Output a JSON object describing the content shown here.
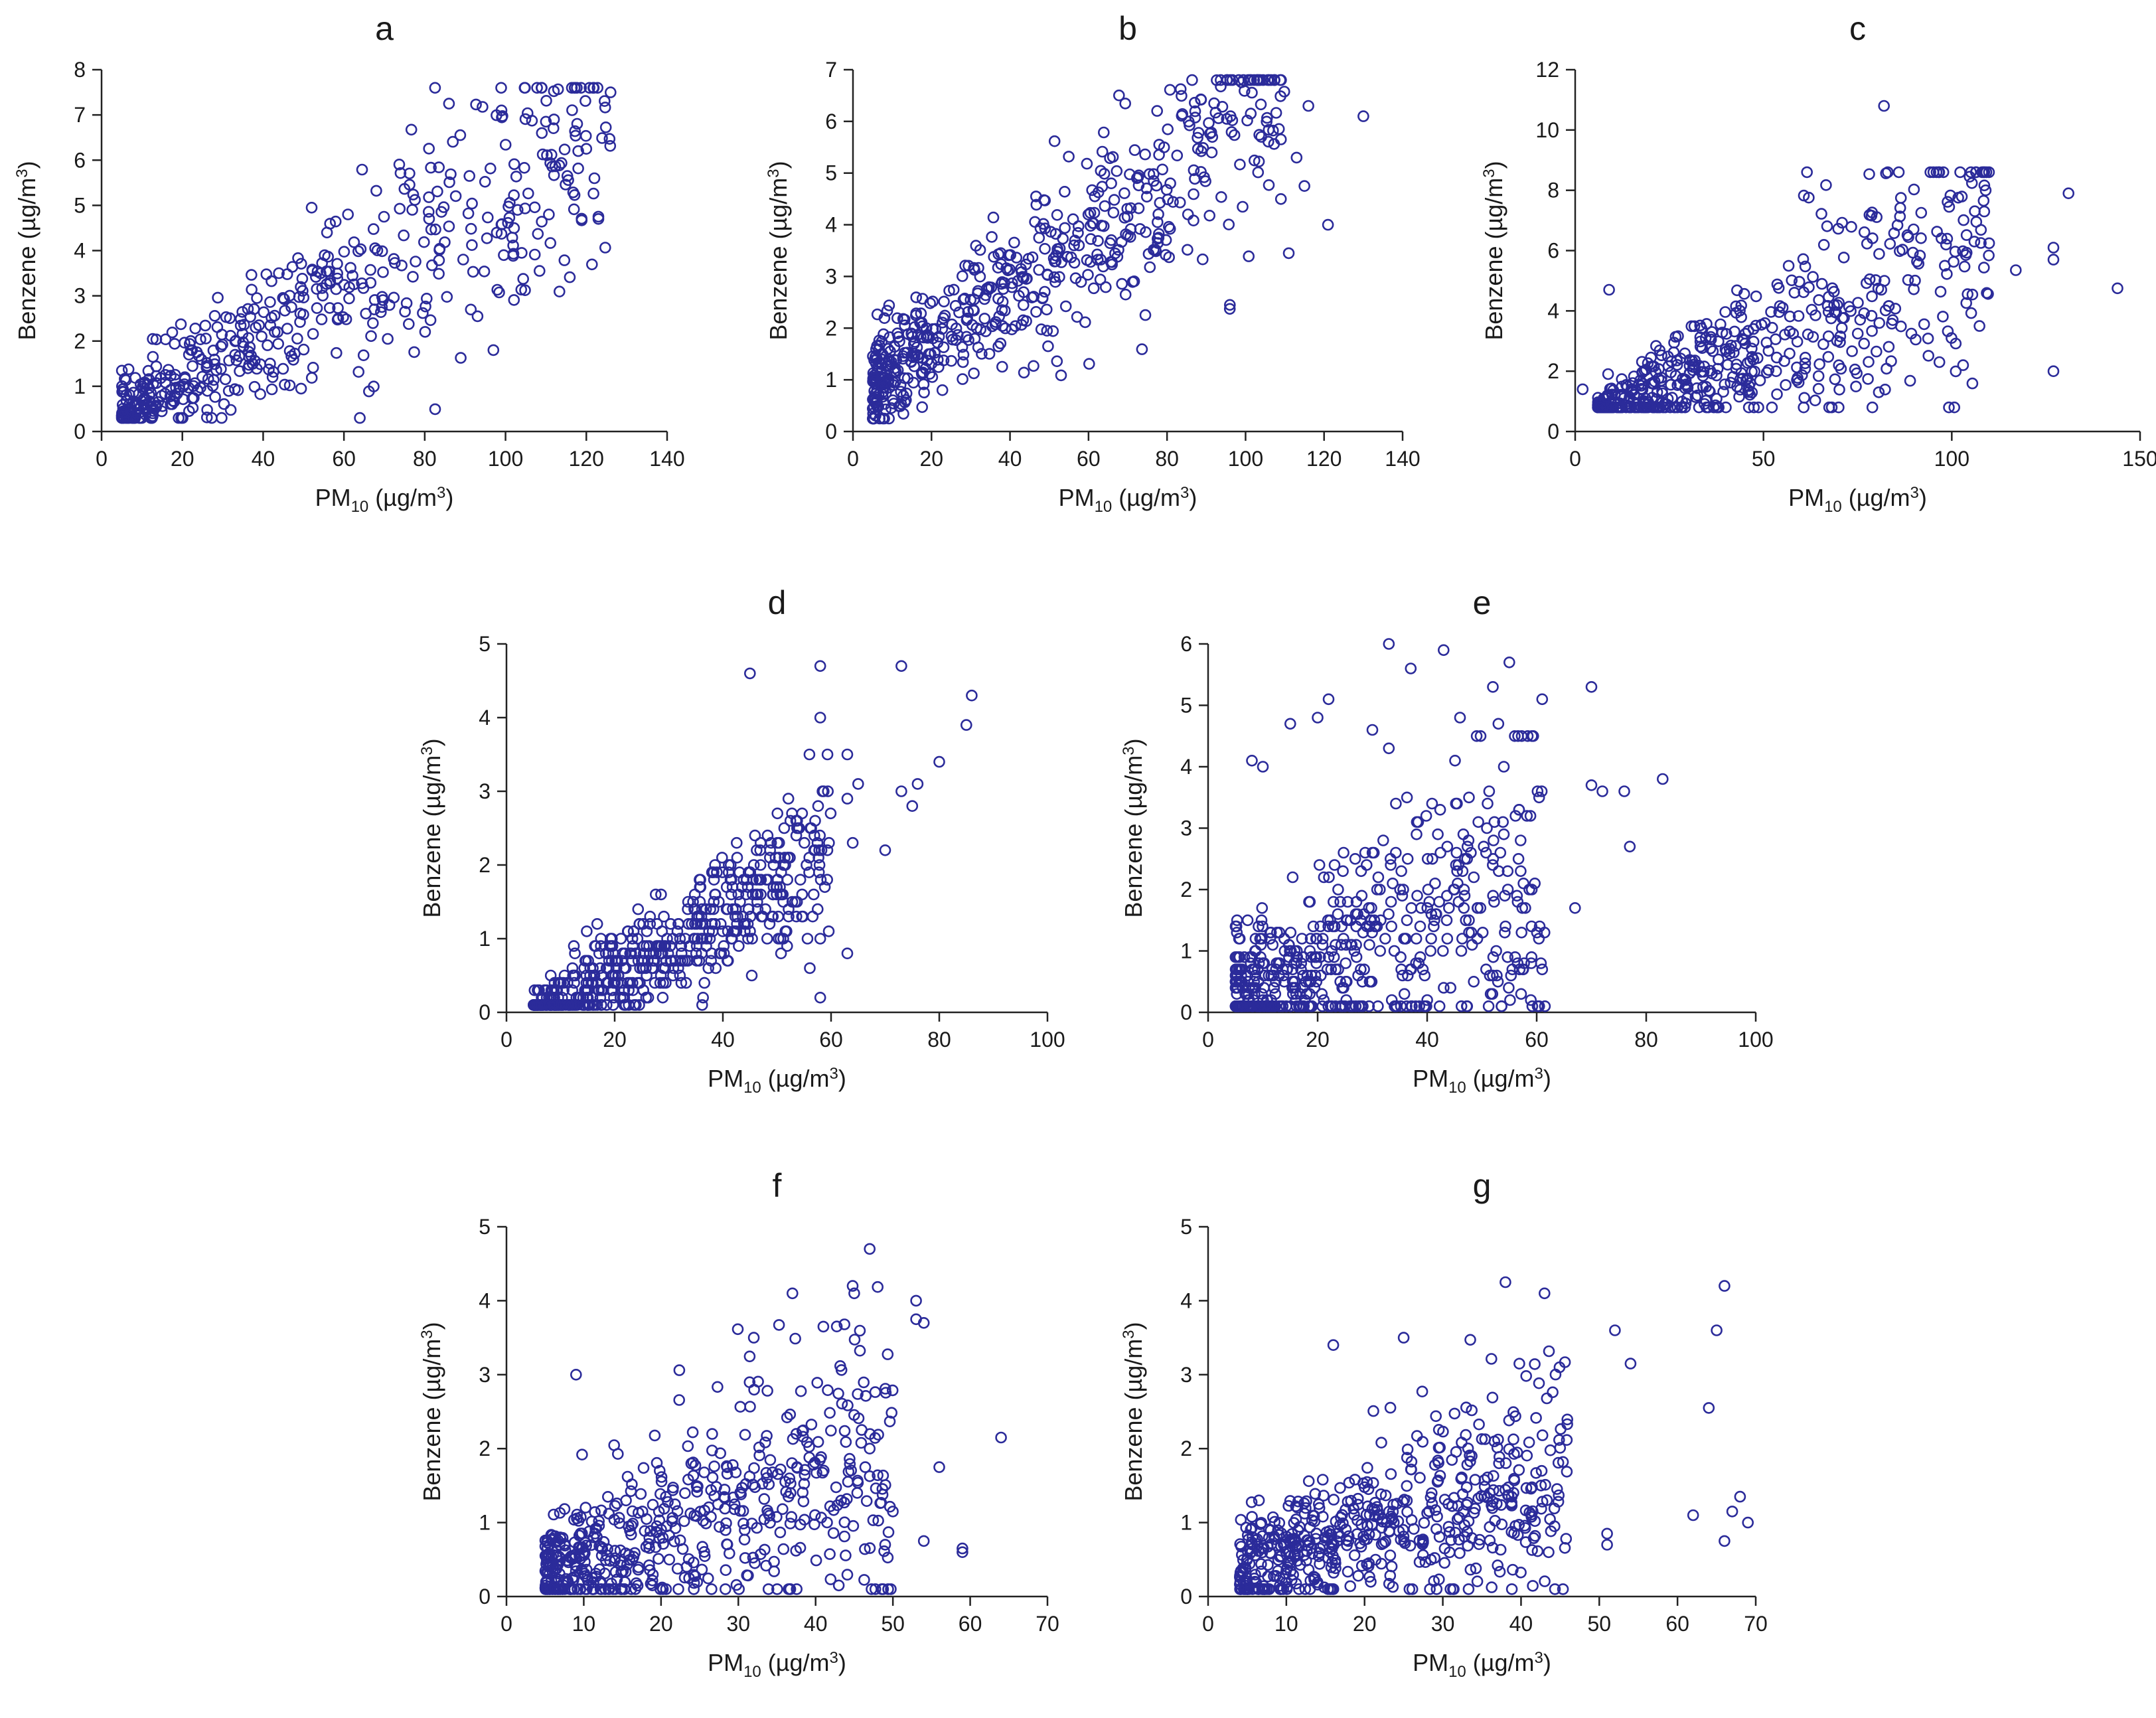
{
  "colors": {
    "marker": "#2b2b9a",
    "axis": "#222222",
    "background": "#ffffff"
  },
  "chart_data": [
    {
      "id": "a",
      "type": "scatter",
      "title": "a",
      "xlabel": "PM10 (µg/m3)",
      "ylabel": "Benzene (µg/m3)",
      "xlim": [
        0,
        140
      ],
      "ylim": [
        0,
        8
      ],
      "xticks": [
        0,
        20,
        40,
        60,
        80,
        100,
        120,
        140
      ],
      "yticks": [
        0,
        1,
        2,
        3,
        4,
        5,
        6,
        7,
        8
      ],
      "gen": {
        "seed": 11,
        "n": 520,
        "xMin": 5,
        "xMax": 126,
        "skew": 1.55,
        "slope": 0.05,
        "intercept": 0.1,
        "noise": 0.35,
        "noiseGrow": 0.011,
        "yMin": 0.3,
        "yMax": 7.6,
        "step": 0
      },
      "points": [
        [
          86,
          7.25
        ],
        [
          99,
          7.1
        ],
        [
          126,
          7.5
        ],
        [
          112,
          6.9
        ],
        [
          110,
          6.85
        ],
        [
          109,
          6.6
        ],
        [
          118,
          6.2
        ],
        [
          120,
          6.25
        ],
        [
          122,
          5.6
        ],
        [
          123,
          4.75
        ],
        [
          123,
          4.7
        ],
        [
          97,
          1.8
        ],
        [
          103,
          4.9
        ],
        [
          104,
          3.95
        ],
        [
          61,
          4.8
        ],
        [
          52,
          4.95
        ]
      ]
    },
    {
      "id": "b",
      "type": "scatter",
      "title": "b",
      "xlabel": "PM10 (µg/m3)",
      "ylabel": "Benzene (µg/m3)",
      "xlim": [
        0,
        140
      ],
      "ylim": [
        0,
        7
      ],
      "xticks": [
        0,
        20,
        40,
        60,
        80,
        100,
        120,
        140
      ],
      "yticks": [
        0,
        1,
        2,
        3,
        4,
        5,
        6,
        7
      ],
      "gen": {
        "seed": 23,
        "n": 560,
        "xMin": 5,
        "xMax": 110,
        "skew": 1.5,
        "slope": 0.052,
        "intercept": 0.6,
        "noise": 0.45,
        "noiseGrow": 0.007,
        "yMin": 0.25,
        "yMax": 6.8,
        "step": 0
      },
      "points": [
        [
          106,
          6.8
        ],
        [
          92,
          6.35
        ],
        [
          116,
          6.3
        ],
        [
          130,
          6.1
        ],
        [
          113,
          5.3
        ],
        [
          121,
          4.0
        ],
        [
          115,
          4.75
        ],
        [
          111,
          3.45
        ],
        [
          78,
          5.55
        ],
        [
          96,
          2.45
        ],
        [
          104,
          5.7
        ]
      ]
    },
    {
      "id": "c",
      "type": "scatter",
      "title": "c",
      "xlabel": "PM10 (µg/m3)",
      "ylabel": "Benzene  (µg/m3)",
      "xlim": [
        0,
        150
      ],
      "ylim": [
        0,
        12
      ],
      "xticks": [
        0,
        50,
        100,
        150
      ],
      "yticks": [
        0,
        2,
        4,
        6,
        8,
        10,
        12
      ],
      "gen": {
        "seed": 37,
        "n": 560,
        "xMin": 6,
        "xMax": 110,
        "skew": 1.6,
        "slope": 0.06,
        "intercept": 0.0,
        "noise": 0.3,
        "noiseGrow": 0.022,
        "yMin": 0.8,
        "yMax": 8.6,
        "step": 0
      },
      "points": [
        [
          2,
          1.4
        ],
        [
          82,
          10.8
        ],
        [
          83,
          8.6
        ],
        [
          131,
          7.9
        ],
        [
          127,
          6.1
        ],
        [
          127,
          5.7
        ],
        [
          127,
          2.0
        ],
        [
          144,
          4.75
        ],
        [
          117,
          5.35
        ],
        [
          109,
          8.0
        ],
        [
          106,
          6.3
        ],
        [
          103,
          2.2
        ],
        [
          9,
          4.7
        ]
      ]
    },
    {
      "id": "d",
      "type": "scatter",
      "title": "d",
      "xlabel": "PM10 (µg/m3)",
      "ylabel": "Benzene (µg/m3)",
      "xlim": [
        0,
        100
      ],
      "ylim": [
        0,
        5
      ],
      "xticks": [
        0,
        20,
        40,
        60,
        80,
        100
      ],
      "yticks": [
        0,
        1,
        2,
        3,
        4,
        5
      ],
      "gen": {
        "seed": 41,
        "n": 600,
        "xMin": 5,
        "xMax": 60,
        "skew": 1.35,
        "slope": 0.042,
        "intercept": -0.35,
        "noise": 0.22,
        "noiseGrow": 0.006,
        "yMin": 0.1,
        "yMax": 3.5,
        "step": 0.1
      },
      "points": [
        [
          45,
          4.6
        ],
        [
          58,
          4.7
        ],
        [
          73,
          4.7
        ],
        [
          58,
          4.0
        ],
        [
          86,
          4.3
        ],
        [
          85,
          3.9
        ],
        [
          80,
          3.4
        ],
        [
          76,
          3.1
        ],
        [
          73,
          3.0
        ],
        [
          75,
          2.8
        ],
        [
          70,
          2.2
        ],
        [
          65,
          3.1
        ],
        [
          63,
          2.9
        ],
        [
          63,
          3.5
        ],
        [
          64,
          2.3
        ],
        [
          56,
          3.5
        ],
        [
          58,
          1.0
        ],
        [
          58,
          0.2
        ],
        [
          63,
          0.8
        ]
      ]
    },
    {
      "id": "e",
      "type": "scatter",
      "title": "e",
      "xlabel": "PM10 (µg/m3)",
      "ylabel": "Benzene (µg/m3)",
      "xlim": [
        0,
        100
      ],
      "ylim": [
        0,
        6
      ],
      "xticks": [
        0,
        20,
        40,
        60,
        80,
        100
      ],
      "yticks": [
        0,
        1,
        2,
        3,
        4,
        5,
        6
      ],
      "gen": {
        "seed": 53,
        "n": 540,
        "xMin": 5,
        "xMax": 62,
        "skew": 1.45,
        "slope": 0.03,
        "intercept": 0.15,
        "noise": 0.35,
        "noiseGrow": 0.02,
        "yMin": 0.1,
        "yMax": 4.5,
        "step": 0.1
      },
      "points": [
        [
          33,
          6.0
        ],
        [
          43,
          5.9
        ],
        [
          55,
          5.7
        ],
        [
          37,
          5.6
        ],
        [
          52,
          5.3
        ],
        [
          70,
          5.3
        ],
        [
          22,
          5.1
        ],
        [
          61,
          5.1
        ],
        [
          20,
          4.8
        ],
        [
          46,
          4.8
        ],
        [
          15,
          4.7
        ],
        [
          53,
          4.7
        ],
        [
          56,
          4.5
        ],
        [
          30,
          4.6
        ],
        [
          33,
          4.3
        ],
        [
          8,
          4.1
        ],
        [
          10,
          4.0
        ],
        [
          54,
          4.0
        ],
        [
          70,
          3.7
        ],
        [
          72,
          3.6
        ],
        [
          76,
          3.6
        ],
        [
          83,
          3.8
        ],
        [
          77,
          2.7
        ],
        [
          67,
          1.7
        ],
        [
          59,
          0.8
        ],
        [
          61,
          0.7
        ]
      ]
    },
    {
      "id": "f",
      "type": "scatter",
      "title": "f",
      "xlabel": "PM10 (µg/m3)",
      "ylabel": "Benzene (µg/m3)",
      "xlim": [
        0,
        70
      ],
      "ylim": [
        0,
        5
      ],
      "xticks": [
        0,
        10,
        20,
        30,
        40,
        50,
        60,
        70
      ],
      "yticks": [
        0,
        1,
        2,
        3,
        4,
        5
      ],
      "gen": {
        "seed": 67,
        "n": 560,
        "xMin": 5,
        "xMax": 50,
        "skew": 1.4,
        "slope": 0.035,
        "intercept": 0.15,
        "noise": 0.28,
        "noiseGrow": 0.016,
        "yMin": 0.1,
        "yMax": 4.2,
        "step": 0
      },
      "points": [
        [
          47,
          4.7
        ],
        [
          37,
          4.1
        ],
        [
          45,
          4.1
        ],
        [
          53,
          4.0
        ],
        [
          53,
          3.75
        ],
        [
          54,
          3.7
        ],
        [
          32,
          3.5
        ],
        [
          41,
          3.65
        ],
        [
          9,
          3.0
        ],
        [
          64,
          2.15
        ],
        [
          59,
          0.65
        ],
        [
          59,
          0.6
        ],
        [
          56,
          1.75
        ],
        [
          54,
          0.75
        ],
        [
          50,
          1.15
        ],
        [
          47,
          2.0
        ],
        [
          43,
          0.15
        ]
      ]
    },
    {
      "id": "g",
      "type": "scatter",
      "title": "g",
      "xlabel": "PM10 (µg/m3)",
      "ylabel": "Benzene (µg/m3)",
      "xlim": [
        0,
        70
      ],
      "ylim": [
        0,
        5
      ],
      "xticks": [
        0,
        10,
        20,
        30,
        40,
        50,
        60,
        70
      ],
      "yticks": [
        0,
        1,
        2,
        3,
        4,
        5
      ],
      "gen": {
        "seed": 79,
        "n": 560,
        "xMin": 4,
        "xMax": 46,
        "skew": 1.3,
        "slope": 0.03,
        "intercept": 0.25,
        "noise": 0.3,
        "noiseGrow": 0.012,
        "yMin": 0.1,
        "yMax": 4.3,
        "step": 0
      },
      "points": [
        [
          38,
          4.25
        ],
        [
          66,
          4.2
        ],
        [
          43,
          4.1
        ],
        [
          65,
          3.6
        ],
        [
          52,
          3.6
        ],
        [
          54,
          3.15
        ],
        [
          16,
          3.4
        ],
        [
          25,
          3.5
        ],
        [
          64,
          2.55
        ],
        [
          68,
          1.35
        ],
        [
          69,
          1.0
        ],
        [
          67,
          1.15
        ],
        [
          66,
          0.75
        ],
        [
          62,
          1.1
        ],
        [
          51,
          0.7
        ],
        [
          51,
          0.85
        ],
        [
          4.5,
          0.2
        ],
        [
          5,
          0.18
        ],
        [
          6,
          0.2
        ],
        [
          6.5,
          1.3
        ]
      ]
    }
  ]
}
